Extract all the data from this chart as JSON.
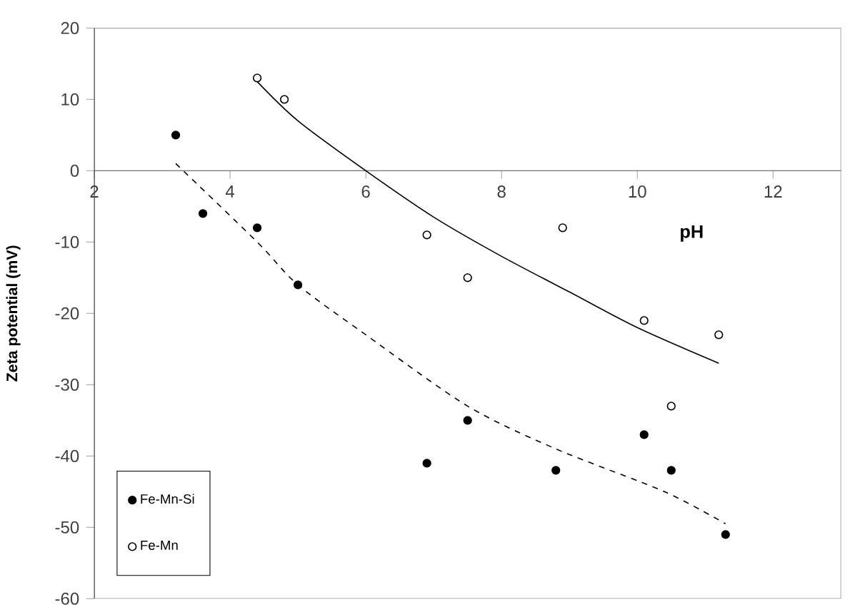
{
  "chart_data": {
    "type": "scatter",
    "xlabel": "pH",
    "ylabel": "Zeta potential (mV)",
    "xlim": [
      2,
      13
    ],
    "ylim": [
      -60,
      20
    ],
    "xticks": [
      2,
      4,
      6,
      8,
      10,
      12
    ],
    "yticks": [
      -60,
      -50,
      -40,
      -30,
      -20,
      -10,
      0,
      10,
      20
    ],
    "grid": false,
    "legend": "bottom left",
    "series": [
      {
        "name": "Fe-Mn-Si",
        "color": "#000000",
        "marker": "circle",
        "x": [
          3.2,
          3.6,
          4.4,
          5.0,
          6.9,
          7.5,
          8.8,
          10.1,
          10.5,
          11.3
        ],
        "values": [
          5,
          -6,
          -8,
          -16,
          -41,
          -35,
          -42,
          -37,
          -42,
          -51
        ]
      },
      {
        "name": "Fe-Mn",
        "color": "#000000",
        "marker": "circle",
        "x": [
          4.4,
          4.8,
          6.9,
          7.5,
          8.9,
          10.1,
          10.5,
          11.2
        ],
        "values": [
          13,
          10,
          -9,
          -15,
          -8,
          -21,
          -33,
          -23
        ]
      },
      {
        "type": "line",
        "color": "#000000",
        "line_style": "dashed",
        "marker": "none",
        "x": [
          3.2,
          4.4,
          5.0,
          6.0,
          7.5,
          8.8,
          10.4,
          11.3
        ],
        "values": [
          1,
          -10,
          -16,
          -23,
          -33,
          -39,
          -45,
          -49.5
        ]
      },
      {
        "type": "line",
        "color": "#000000",
        "line_style": "solid",
        "marker": "none",
        "x": [
          4.4,
          5.0,
          6.0,
          7.0,
          8.0,
          9.0,
          10.0,
          11.2
        ],
        "values": [
          12.5,
          7,
          0,
          -6.5,
          -12,
          -17,
          -22,
          -27
        ]
      }
    ]
  }
}
